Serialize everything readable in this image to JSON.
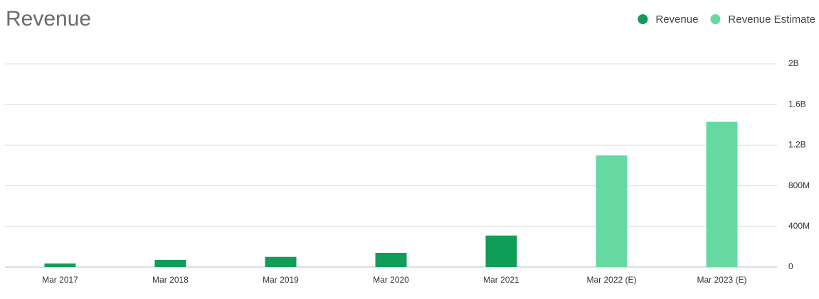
{
  "chart_data": {
    "type": "bar",
    "title": "Revenue",
    "categories": [
      "Mar 2017",
      "Mar 2018",
      "Mar 2019",
      "Mar 2020",
      "Mar 2021",
      "Mar 2022 (E)",
      "Mar 2023 (E)"
    ],
    "series": [
      {
        "name": "Revenue",
        "color": "#109d58",
        "values": [
          35000000,
          70000000,
          100000000,
          140000000,
          310000000,
          null,
          null
        ]
      },
      {
        "name": "Revenue Estimate",
        "color": "#66d9a3",
        "values": [
          null,
          null,
          null,
          null,
          null,
          1100000000,
          1430000000
        ]
      }
    ],
    "ylim": [
      0,
      2000000000
    ],
    "yticks": [
      0,
      {
        "value": 400000000,
        "label": "400M"
      },
      {
        "value": 800000000,
        "label": "800M"
      },
      {
        "value": 1200000000,
        "label": "1.2B"
      },
      {
        "value": 1600000000,
        "label": "1.6B"
      },
      {
        "value": 2000000000,
        "label": "2B"
      }
    ],
    "grid": true,
    "legend": "top-right"
  }
}
